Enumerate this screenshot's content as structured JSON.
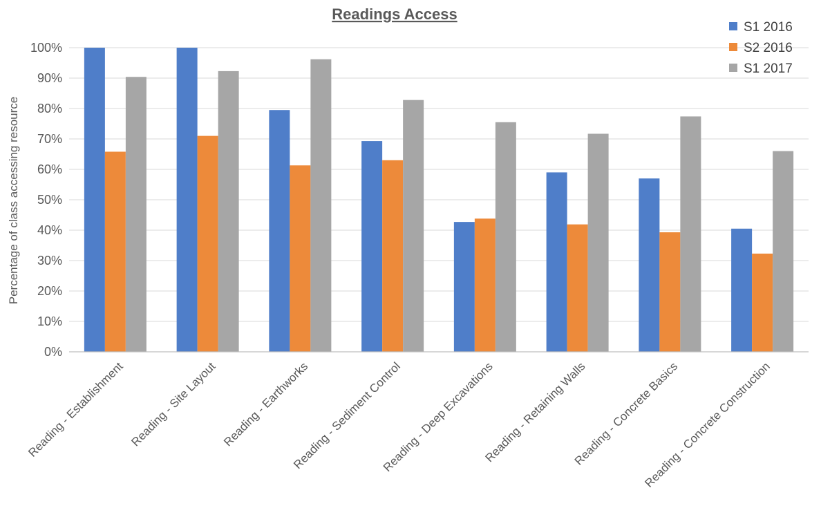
{
  "chart_data": {
    "type": "bar",
    "title": "Readings Access",
    "xlabel": "",
    "ylabel": "Percentage of class accessing resource",
    "ylim": [
      0,
      100
    ],
    "yticks": [
      "0%",
      "10%",
      "20%",
      "30%",
      "40%",
      "50%",
      "60%",
      "70%",
      "80%",
      "90%",
      "100%"
    ],
    "grid": true,
    "legend_position": "top-right",
    "categories": [
      "Reading - Establishment",
      "Reading - Site Layout",
      "Reading - Earthworks",
      "Reading - Sediment Control",
      "Reading - Deep Excavations",
      "Reading - Retaining Walls",
      "Reading - Concrete Basics",
      "Reading - Concrete Construction"
    ],
    "series": [
      {
        "name": "S1 2016",
        "color": "#4f7ec9",
        "values": [
          100,
          100,
          79.5,
          69.3,
          42.7,
          59,
          57,
          40.5
        ]
      },
      {
        "name": "S2 2016",
        "color": "#ed8a3a",
        "values": [
          65.8,
          71,
          61.3,
          63,
          43.8,
          41.9,
          39.3,
          32.3
        ]
      },
      {
        "name": "S1  2017",
        "color": "#a6a6a6",
        "values": [
          90.4,
          92.3,
          96.2,
          82.8,
          75.5,
          71.7,
          77.4,
          66
        ]
      }
    ]
  }
}
